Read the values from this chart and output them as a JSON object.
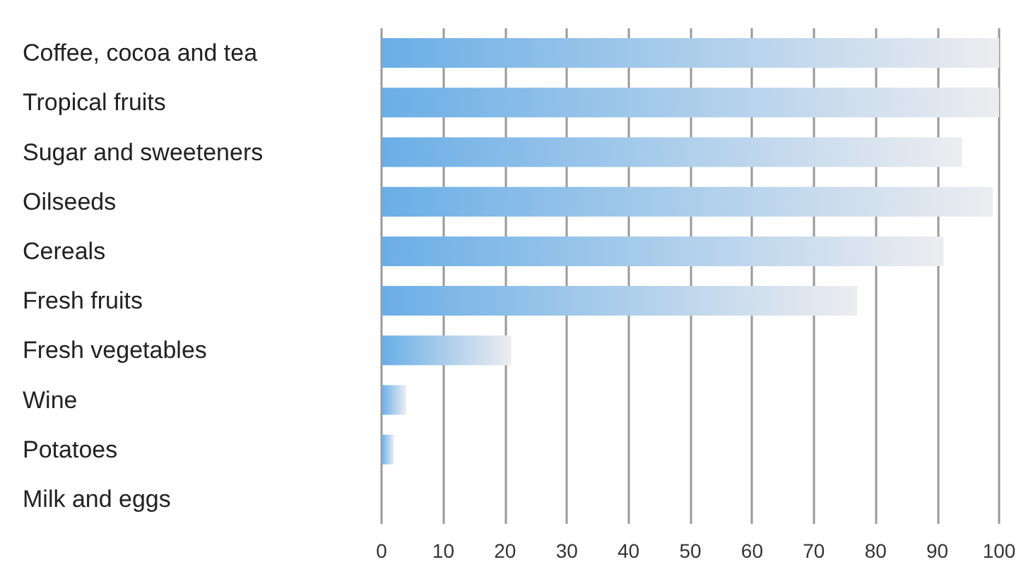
{
  "chart_data": {
    "type": "bar",
    "orientation": "horizontal",
    "categories": [
      "Coffee, cocoa and tea",
      "Tropical fruits",
      "Sugar and sweeteners",
      "Oilseeds",
      "Cereals",
      "Fresh fruits",
      "Fresh vegetables",
      "Wine",
      "Potatoes",
      "Milk and eggs"
    ],
    "values": [
      100,
      100,
      94,
      99,
      91,
      77,
      21,
      4,
      2,
      0
    ],
    "color": "#6aaee6",
    "xlim": [
      0,
      100
    ],
    "xticks": [
      0,
      10,
      20,
      30,
      40,
      50,
      60,
      70,
      80,
      90,
      100
    ],
    "grid": "x"
  }
}
